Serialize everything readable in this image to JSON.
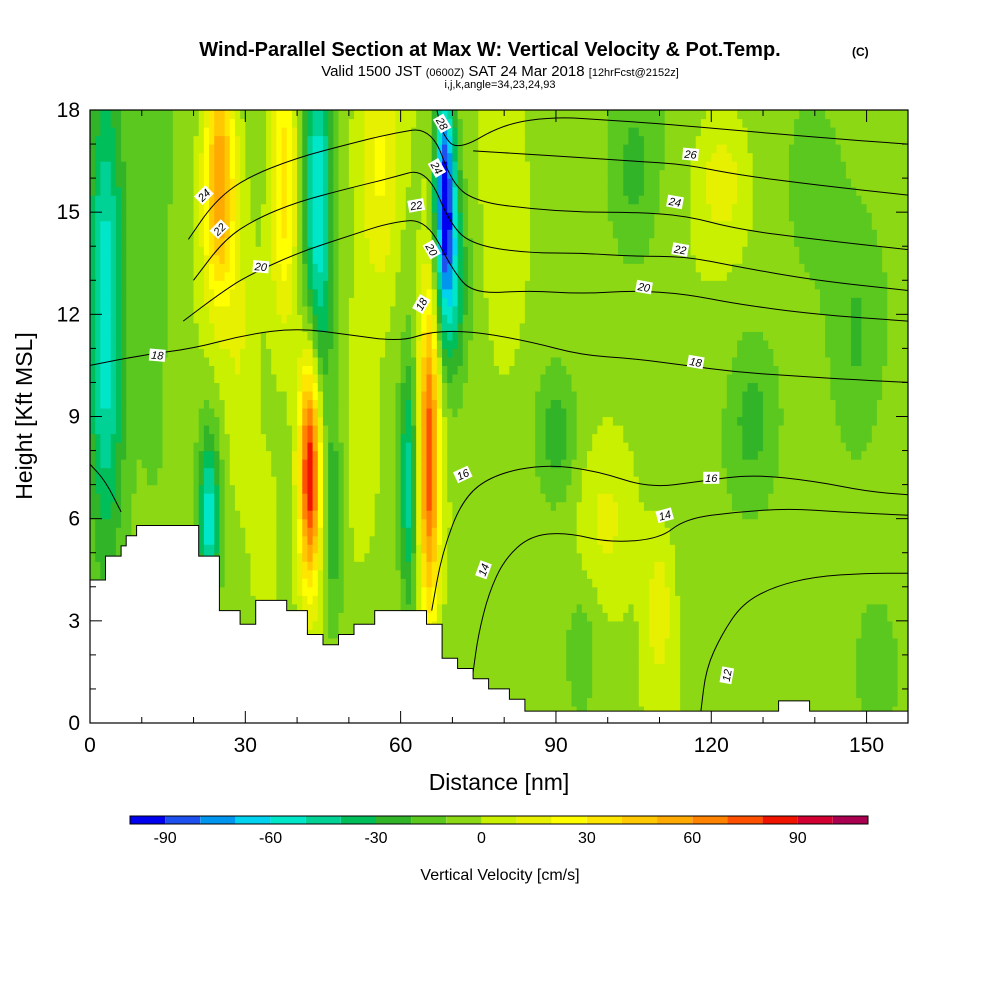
{
  "chart_data": {
    "type": "heatmap",
    "title": "Wind-Parallel Section at Max W: Vertical Velocity & Pot.Temp.",
    "title_mark": "(C)",
    "subtitle_parts": {
      "valid": "Valid 1500 JST",
      "utc": "(0600Z)",
      "date": "SAT 24 Mar 2018",
      "fcst": "[12hrFcst@2152z]"
    },
    "subtitle2": "i,j,k,angle=34,23,24,93",
    "xlabel": "Distance [nm]",
    "ylabel": "Height [Kft MSL]",
    "xlim": [
      0,
      158
    ],
    "ylim": [
      0,
      18
    ],
    "xticks": [
      "0",
      "30",
      "60",
      "90",
      "120",
      "150"
    ],
    "yticks": [
      "0",
      "3",
      "6",
      "9",
      "12",
      "15",
      "18"
    ],
    "colorbar": {
      "label": "Vertical Velocity [cm/s]",
      "ticks": [
        "-90",
        "-60",
        "-30",
        "0",
        "30",
        "60",
        "90"
      ],
      "range": [
        -100,
        110
      ],
      "step": 10,
      "colors": [
        "#0000f0",
        "#1e50f0",
        "#0096f0",
        "#00d2f0",
        "#00e6c8",
        "#00d296",
        "#00be5a",
        "#32b428",
        "#5ac81e",
        "#8cd814",
        "#c8f000",
        "#e6f000",
        "#ffff00",
        "#ffe600",
        "#ffc800",
        "#ffaa00",
        "#ff8200",
        "#ff5000",
        "#f01400",
        "#d20032",
        "#aa0050",
        "#82006e",
        "#5a008c"
      ]
    },
    "w_features": [
      {
        "x": 3,
        "z": 12,
        "sx": 3.5,
        "sz": 7,
        "w": -55
      },
      {
        "x": 12,
        "z": 14,
        "sx": 4,
        "sz": 6,
        "w": -15
      },
      {
        "x": 25,
        "z": 16,
        "sx": 3,
        "sz": 3.5,
        "w": 65
      },
      {
        "x": 29,
        "z": 10,
        "sx": 3,
        "sz": 5,
        "w": 12
      },
      {
        "x": 23,
        "z": 6,
        "sx": 2,
        "sz": 2.5,
        "w": -50
      },
      {
        "x": 34,
        "z": 5.5,
        "sx": 3,
        "sz": 3,
        "w": 10
      },
      {
        "x": 37.5,
        "z": 16,
        "sx": 2.5,
        "sz": 4,
        "w": 40
      },
      {
        "x": 44,
        "z": 15,
        "sx": 2.8,
        "sz": 6,
        "w": -55
      },
      {
        "x": 42.5,
        "z": 7.5,
        "sx": 2.2,
        "sz": 3.5,
        "w": 100
      },
      {
        "x": 47,
        "z": 6,
        "sx": 2,
        "sz": 3,
        "w": -25
      },
      {
        "x": 52,
        "z": 9,
        "sx": 3,
        "sz": 4,
        "w": 10
      },
      {
        "x": 56,
        "z": 16,
        "sx": 4,
        "sz": 4,
        "w": 25
      },
      {
        "x": 61.5,
        "z": 7,
        "sx": 1.8,
        "sz": 3.5,
        "w": -45
      },
      {
        "x": 65.5,
        "z": 8,
        "sx": 2,
        "sz": 5,
        "w": 80
      },
      {
        "x": 68.5,
        "z": 15.5,
        "sx": 2,
        "sz": 3.5,
        "w": -90
      },
      {
        "x": 70.5,
        "z": 13,
        "sx": 2.5,
        "sz": 3,
        "w": -30
      },
      {
        "x": 80,
        "z": 14,
        "sx": 5,
        "sz": 4,
        "w": 12
      },
      {
        "x": 90,
        "z": 8.5,
        "sx": 4,
        "sz": 2,
        "w": -22
      },
      {
        "x": 100,
        "z": 6,
        "sx": 6,
        "sz": 2.5,
        "w": 18
      },
      {
        "x": 110,
        "z": 3.5,
        "sx": 3,
        "sz": 2.5,
        "w": 20
      },
      {
        "x": 105,
        "z": 16,
        "sx": 5,
        "sz": 3,
        "w": -18
      },
      {
        "x": 122,
        "z": 16,
        "sx": 5,
        "sz": 2,
        "w": 20
      },
      {
        "x": 128,
        "z": 9,
        "sx": 5,
        "sz": 2.5,
        "w": -20
      },
      {
        "x": 95,
        "z": 2,
        "sx": 3,
        "sz": 2,
        "w": -15
      },
      {
        "x": 148,
        "z": 11,
        "sx": 5,
        "sz": 4,
        "w": -15
      },
      {
        "x": 152,
        "z": 2,
        "sx": 4,
        "sz": 2,
        "w": -12
      },
      {
        "x": 140,
        "z": 16,
        "sx": 6,
        "sz": 3,
        "w": -12
      }
    ],
    "terrain": [
      [
        0,
        4.2
      ],
      [
        3,
        4.2
      ],
      [
        3,
        4.9
      ],
      [
        6,
        4.9
      ],
      [
        6,
        5.2
      ],
      [
        7,
        5.2
      ],
      [
        7,
        5.5
      ],
      [
        9,
        5.5
      ],
      [
        9,
        5.8
      ],
      [
        21,
        5.8
      ],
      [
        21,
        4.9
      ],
      [
        25,
        4.9
      ],
      [
        25,
        3.3
      ],
      [
        29,
        3.3
      ],
      [
        29,
        2.9
      ],
      [
        32,
        2.9
      ],
      [
        32,
        3.6
      ],
      [
        38,
        3.6
      ],
      [
        38,
        3.3
      ],
      [
        42,
        3.3
      ],
      [
        42,
        2.6
      ],
      [
        45,
        2.6
      ],
      [
        45,
        2.3
      ],
      [
        48,
        2.3
      ],
      [
        48,
        2.6
      ],
      [
        51,
        2.6
      ],
      [
        51,
        2.9
      ],
      [
        55,
        2.9
      ],
      [
        55,
        3.3
      ],
      [
        65,
        3.3
      ],
      [
        65,
        2.9
      ],
      [
        68,
        2.9
      ],
      [
        68,
        1.9
      ],
      [
        71,
        1.9
      ],
      [
        71,
        1.6
      ],
      [
        74,
        1.6
      ],
      [
        74,
        1.3
      ],
      [
        77,
        1.3
      ],
      [
        77,
        1.0
      ],
      [
        81,
        1.0
      ],
      [
        81,
        0.7
      ],
      [
        84,
        0.7
      ],
      [
        84,
        0.35
      ],
      [
        133,
        0.35
      ],
      [
        133,
        0.65
      ],
      [
        139,
        0.65
      ],
      [
        139,
        0.35
      ],
      [
        158,
        0.35
      ]
    ],
    "isentropes": [
      {
        "theta": 12,
        "label": "12",
        "points": [
          [
            118,
            0.35
          ],
          [
            119,
            1.6
          ],
          [
            122,
            2.6
          ],
          [
            126,
            3.5
          ],
          [
            132,
            4.0
          ],
          [
            140,
            4.3
          ],
          [
            150,
            4.4
          ],
          [
            158,
            4.4
          ]
        ]
      },
      {
        "theta": 14,
        "label": "14",
        "points": [
          [
            74,
            1.5
          ],
          [
            75,
            2.6
          ],
          [
            77,
            3.8
          ],
          [
            80,
            4.8
          ],
          [
            85,
            5.5
          ],
          [
            92,
            5.6
          ],
          [
            100,
            5.3
          ],
          [
            110,
            5.4
          ],
          [
            115,
            6.0
          ],
          [
            125,
            6.2
          ],
          [
            135,
            6.3
          ],
          [
            145,
            6.2
          ],
          [
            158,
            6.1
          ]
        ]
      },
      {
        "theta": 16,
        "label": "16",
        "points": [
          [
            66,
            3.3
          ],
          [
            68,
            5.0
          ],
          [
            72,
            6.6
          ],
          [
            78,
            7.3
          ],
          [
            88,
            7.6
          ],
          [
            98,
            7.4
          ],
          [
            108,
            6.9
          ],
          [
            118,
            7.1
          ],
          [
            128,
            7.3
          ],
          [
            140,
            7.1
          ],
          [
            150,
            6.8
          ],
          [
            158,
            6.7
          ]
        ]
      },
      {
        "theta": 16,
        "label": "16",
        "points": [
          [
            0,
            7.6
          ],
          [
            3,
            7.1
          ],
          [
            6,
            6.2
          ]
        ]
      },
      {
        "theta": 18,
        "label": "18",
        "points": [
          [
            0,
            10.5
          ],
          [
            10,
            10.8
          ],
          [
            20,
            11.0
          ],
          [
            30,
            11.4
          ],
          [
            40,
            11.6
          ],
          [
            50,
            11.4
          ],
          [
            60,
            11.2
          ],
          [
            66,
            11.5
          ],
          [
            74,
            11.5
          ],
          [
            85,
            11.2
          ],
          [
            95,
            10.8
          ],
          [
            105,
            10.7
          ],
          [
            115,
            10.5
          ],
          [
            125,
            10.3
          ],
          [
            135,
            10.2
          ],
          [
            145,
            10.1
          ],
          [
            158,
            10.0
          ]
        ]
      },
      {
        "theta": 20,
        "label": "20",
        "points": [
          [
            18,
            11.8
          ],
          [
            25,
            12.6
          ],
          [
            30,
            13.1
          ],
          [
            40,
            13.8
          ],
          [
            50,
            14.3
          ],
          [
            58,
            14.7
          ],
          [
            65,
            14.8
          ],
          [
            70,
            13.3
          ],
          [
            74,
            12.6
          ],
          [
            85,
            12.7
          ],
          [
            95,
            12.6
          ],
          [
            105,
            12.7
          ],
          [
            115,
            12.6
          ],
          [
            125,
            12.3
          ],
          [
            140,
            12.0
          ],
          [
            158,
            11.8
          ]
        ]
      },
      {
        "theta": 22,
        "label": "22",
        "points": [
          [
            20,
            13.0
          ],
          [
            26,
            14.2
          ],
          [
            32,
            14.8
          ],
          [
            40,
            15.3
          ],
          [
            50,
            15.7
          ],
          [
            58,
            16.0
          ],
          [
            65,
            16.3
          ],
          [
            70,
            14.5
          ],
          [
            75,
            14.0
          ],
          [
            85,
            13.8
          ],
          [
            95,
            13.8
          ],
          [
            105,
            13.7
          ],
          [
            115,
            13.7
          ],
          [
            125,
            13.4
          ],
          [
            140,
            13.0
          ],
          [
            158,
            12.7
          ]
        ]
      },
      {
        "theta": 24,
        "label": "24",
        "points": [
          [
            19,
            14.2
          ],
          [
            24,
            15.3
          ],
          [
            30,
            16.0
          ],
          [
            40,
            16.6
          ],
          [
            50,
            17.0
          ],
          [
            58,
            17.3
          ],
          [
            66,
            17.5
          ],
          [
            70,
            15.8
          ],
          [
            75,
            15.3
          ],
          [
            85,
            15.1
          ],
          [
            95,
            15.0
          ],
          [
            105,
            15.0
          ],
          [
            115,
            14.9
          ],
          [
            125,
            14.5
          ],
          [
            140,
            14.2
          ],
          [
            158,
            13.9
          ]
        ]
      },
      {
        "theta": 26,
        "label": "26",
        "points": [
          [
            74,
            16.8
          ],
          [
            85,
            16.7
          ],
          [
            95,
            16.6
          ],
          [
            105,
            16.5
          ],
          [
            115,
            16.4
          ],
          [
            125,
            16.1
          ],
          [
            140,
            15.8
          ],
          [
            158,
            15.5
          ]
        ]
      },
      {
        "theta": 28,
        "label": "28",
        "points": [
          [
            67,
            18.0
          ],
          [
            68,
            17.3
          ],
          [
            71,
            16.8
          ],
          [
            80,
            17.6
          ],
          [
            90,
            17.8
          ],
          [
            100,
            17.7
          ],
          [
            110,
            17.6
          ],
          [
            125,
            17.4
          ],
          [
            140,
            17.2
          ],
          [
            158,
            17.0
          ]
        ]
      }
    ],
    "contour_labels": [
      {
        "text": "12",
        "x": 123,
        "z": 1.4,
        "angle": -80
      },
      {
        "text": "14",
        "x": 76,
        "z": 4.5,
        "angle": -70
      },
      {
        "text": "14",
        "x": 111,
        "z": 6.1,
        "angle": -15
      },
      {
        "text": "16",
        "x": 72,
        "z": 7.3,
        "angle": -25
      },
      {
        "text": "16",
        "x": 120,
        "z": 7.2,
        "angle": 0
      },
      {
        "text": "18",
        "x": 13,
        "z": 10.8,
        "angle": 5
      },
      {
        "text": "18",
        "x": 64,
        "z": 12.3,
        "angle": -60
      },
      {
        "text": "18",
        "x": 117,
        "z": 10.6,
        "angle": 10
      },
      {
        "text": "20",
        "x": 33,
        "z": 13.4,
        "angle": 5
      },
      {
        "text": "20",
        "x": 66,
        "z": 13.9,
        "angle": 60
      },
      {
        "text": "20",
        "x": 107,
        "z": 12.8,
        "angle": 10
      },
      {
        "text": "22",
        "x": 25,
        "z": 14.5,
        "angle": -45
      },
      {
        "text": "22",
        "x": 63,
        "z": 15.2,
        "angle": -10
      },
      {
        "text": "22",
        "x": 114,
        "z": 13.9,
        "angle": 10
      },
      {
        "text": "24",
        "x": 22,
        "z": 15.5,
        "angle": -45
      },
      {
        "text": "24",
        "x": 67,
        "z": 16.3,
        "angle": 60
      },
      {
        "text": "24",
        "x": 113,
        "z": 15.3,
        "angle": 10
      },
      {
        "text": "26",
        "x": 116,
        "z": 16.7,
        "angle": 5
      },
      {
        "text": "28",
        "x": 68,
        "z": 17.6,
        "angle": 60
      }
    ]
  }
}
